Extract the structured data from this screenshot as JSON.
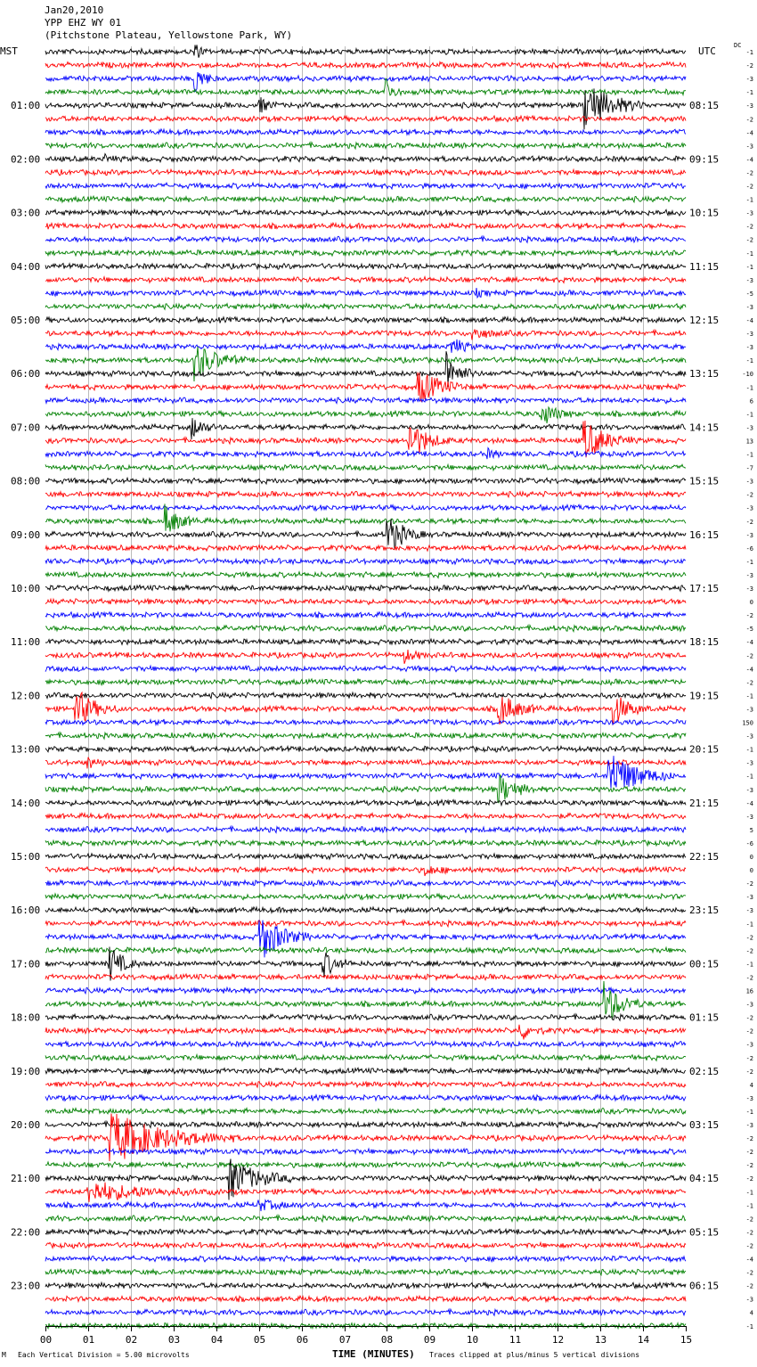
{
  "header": {
    "date": "Jan20,2010",
    "station": "YPP EHZ WY 01",
    "location": "(Pitchstone Plateau, Yellowstone Park, WY)"
  },
  "corner": {
    "left": "MST",
    "right": "UTC",
    "dc": "DC"
  },
  "footer": {
    "mark": "M",
    "scale": "Each Vertical Division = 5.00 microvolts",
    "xlabel": "TIME (MINUTES)",
    "clip": "Traces clipped at plus/minus 5 vertical divisions"
  },
  "colors": {
    "trace_cycle": [
      "#000000",
      "#ff0000",
      "#0000ff",
      "#008000"
    ],
    "grid": "#bbbbbb",
    "axis": "#000000"
  },
  "chart_data": {
    "type": "line",
    "title": "YPP EHZ WY 01",
    "xlabel": "TIME (MINUTES)",
    "xlim": [
      0,
      15
    ],
    "x_ticks": [
      "00",
      "01",
      "02",
      "03",
      "04",
      "05",
      "06",
      "07",
      "08",
      "09",
      "10",
      "11",
      "12",
      "13",
      "14",
      "15"
    ],
    "trace_count": 96,
    "left_hour_labels": [
      "01:00",
      "02:00",
      "03:00",
      "04:00",
      "05:00",
      "06:00",
      "07:00",
      "08:00",
      "09:00",
      "10:00",
      "11:00",
      "12:00",
      "13:00",
      "14:00",
      "15:00",
      "16:00",
      "17:00",
      "18:00",
      "19:00",
      "20:00",
      "21:00",
      "22:00",
      "23:00"
    ],
    "right_hour_labels": [
      "08:15",
      "09:15",
      "10:15",
      "11:15",
      "12:15",
      "13:15",
      "14:15",
      "15:15",
      "16:15",
      "17:15",
      "18:15",
      "19:15",
      "20:15",
      "21:15",
      "22:15",
      "23:15",
      "00:15",
      "01:15",
      "02:15",
      "03:15",
      "04:15",
      "05:15",
      "06:15"
    ],
    "dc_offsets": [
      "-1",
      "-2",
      "-3",
      "-1",
      "-3",
      "-2",
      "-4",
      "-3",
      "-4",
      "-2",
      "-2",
      "-1",
      "-3",
      "-2",
      "-2",
      "-1",
      "-1",
      "-3",
      "-5",
      "-3",
      "-4",
      "-3",
      "-3",
      "-1",
      "-10",
      "-1",
      "6",
      "-1",
      "-3",
      "13",
      "-1",
      "-7",
      "-3",
      "-2",
      "-3",
      "-2",
      "-3",
      "-6",
      "-1",
      "-3",
      "-3",
      "0",
      "-2",
      "-5",
      "-4",
      "-2",
      "-4",
      "-2",
      "-1",
      "-3",
      "150",
      "-3",
      "-1",
      "-3",
      "-1",
      "-3",
      "-4",
      "-3",
      "5",
      "-6",
      "0",
      "0",
      "-2",
      "-3",
      "-3",
      "-1",
      "-2",
      "-2",
      "-1",
      "-2",
      "16",
      "-3",
      "-2",
      "-2",
      "-3",
      "-2",
      "-2",
      "4",
      "-3",
      "-1",
      "-3",
      "-2",
      "-2",
      "-2",
      "-2",
      "-1",
      "-1",
      "-2",
      "-2",
      "-2",
      "-4",
      "-2",
      "-2",
      "-3",
      "4",
      "-1"
    ],
    "events": [
      {
        "trace": 0,
        "minute": 3.5,
        "amp": 1.6,
        "dur": 0.3
      },
      {
        "trace": 2,
        "minute": 3.5,
        "amp": 3.0,
        "dur": 0.5
      },
      {
        "trace": 4,
        "minute": 5.0,
        "amp": 1.5,
        "dur": 0.5
      },
      {
        "trace": 3,
        "minute": 7.95,
        "amp": 3.0,
        "dur": 0.4
      },
      {
        "trace": 4,
        "minute": 12.6,
        "amp": 5.0,
        "dur": 1.5
      },
      {
        "trace": 8,
        "minute": 1.4,
        "amp": 0.6,
        "dur": 0.4
      },
      {
        "trace": 18,
        "minute": 10.1,
        "amp": 0.5,
        "dur": 0.5
      },
      {
        "trace": 21,
        "minute": 10.0,
        "amp": 1.2,
        "dur": 0.8
      },
      {
        "trace": 22,
        "minute": 9.5,
        "amp": 2.0,
        "dur": 0.6
      },
      {
        "trace": 23,
        "minute": 3.5,
        "amp": 3.5,
        "dur": 1.2
      },
      {
        "trace": 24,
        "minute": 9.4,
        "amp": 4.0,
        "dur": 0.7
      },
      {
        "trace": 25,
        "minute": 8.7,
        "amp": 3.5,
        "dur": 1.2
      },
      {
        "trace": 27,
        "minute": 11.6,
        "amp": 2.5,
        "dur": 0.8
      },
      {
        "trace": 28,
        "minute": 3.4,
        "amp": 2.5,
        "dur": 0.6
      },
      {
        "trace": 29,
        "minute": 8.5,
        "amp": 4.0,
        "dur": 1.0
      },
      {
        "trace": 29,
        "minute": 12.6,
        "amp": 4.0,
        "dur": 1.2
      },
      {
        "trace": 30,
        "minute": 10.3,
        "amp": 1.0,
        "dur": 0.5
      },
      {
        "trace": 35,
        "minute": 2.8,
        "amp": 3.0,
        "dur": 0.8
      },
      {
        "trace": 36,
        "minute": 8.0,
        "amp": 4.0,
        "dur": 0.9
      },
      {
        "trace": 45,
        "minute": 8.4,
        "amp": 1.2,
        "dur": 0.6
      },
      {
        "trace": 49,
        "minute": 0.7,
        "amp": 4.0,
        "dur": 1.0
      },
      {
        "trace": 49,
        "minute": 10.6,
        "amp": 3.5,
        "dur": 1.0
      },
      {
        "trace": 49,
        "minute": 13.3,
        "amp": 3.0,
        "dur": 0.9
      },
      {
        "trace": 53,
        "minute": 1.0,
        "amp": 1.0,
        "dur": 0.5
      },
      {
        "trace": 54,
        "minute": 13.2,
        "amp": 5.0,
        "dur": 1.5
      },
      {
        "trace": 55,
        "minute": 10.6,
        "amp": 3.0,
        "dur": 0.9
      },
      {
        "trace": 61,
        "minute": 8.9,
        "amp": 1.0,
        "dur": 0.7
      },
      {
        "trace": 66,
        "minute": 5.0,
        "amp": 5.0,
        "dur": 1.2
      },
      {
        "trace": 68,
        "minute": 1.5,
        "amp": 3.5,
        "dur": 0.7
      },
      {
        "trace": 68,
        "minute": 6.5,
        "amp": 2.5,
        "dur": 0.7
      },
      {
        "trace": 71,
        "minute": 13.1,
        "amp": 4.0,
        "dur": 1.0
      },
      {
        "trace": 73,
        "minute": 11.1,
        "amp": 2.0,
        "dur": 0.6
      },
      {
        "trace": 81,
        "minute": 1.5,
        "amp": 5.0,
        "dur": 3.0
      },
      {
        "trace": 84,
        "minute": 4.3,
        "amp": 4.0,
        "dur": 1.5
      },
      {
        "trace": 85,
        "minute": 1.0,
        "amp": 2.0,
        "dur": 3.0
      },
      {
        "trace": 86,
        "minute": 5.0,
        "amp": 1.0,
        "dur": 1.0
      }
    ]
  }
}
